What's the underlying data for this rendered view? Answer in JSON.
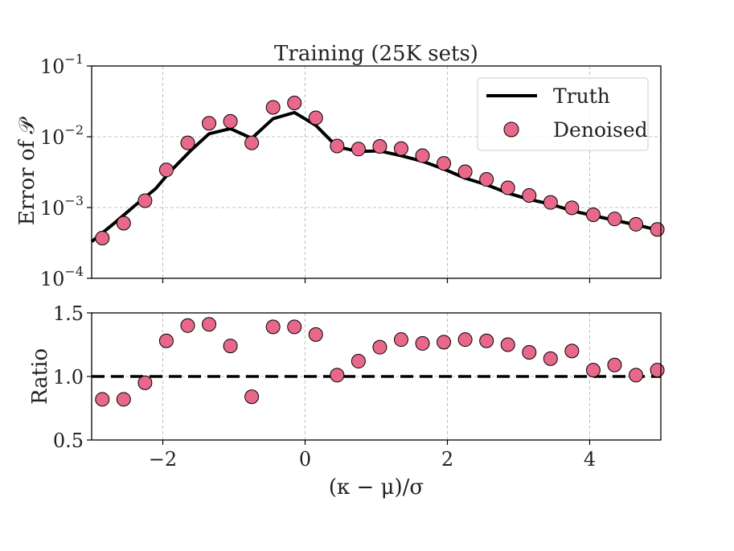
{
  "chart_data": [
    {
      "type": "line",
      "title": "Training (25K sets)",
      "xlabel": "",
      "ylabel": "Error of 𝒫",
      "yscale": "log",
      "ylim": [
        0.0001,
        0.1
      ],
      "xlim": [
        -3,
        5
      ],
      "y_tick_labels": [
        {
          "value": 0.1,
          "base": "10",
          "exp": "−1"
        },
        {
          "value": 0.01,
          "base": "10",
          "exp": "−2"
        },
        {
          "value": 0.001,
          "base": "10",
          "exp": "−3"
        },
        {
          "value": 0.0001,
          "base": "10",
          "exp": "−4"
        }
      ],
      "grid": true,
      "legend": {
        "position": "top-right",
        "entries": [
          {
            "label": "Truth",
            "marker": "line"
          },
          {
            "label": "Denoised",
            "marker": "circle"
          }
        ]
      },
      "series": [
        {
          "name": "Truth",
          "style": "line",
          "color": "#000000",
          "x": [
            -3.0,
            -2.7,
            -2.4,
            -2.1,
            -1.9,
            -1.6,
            -1.35,
            -1.05,
            -0.75,
            -0.45,
            -0.15,
            0.15,
            0.45,
            0.75,
            1.05,
            1.35,
            1.65,
            1.95,
            2.25,
            2.55,
            2.85,
            3.15,
            3.45,
            3.75,
            4.05,
            4.35,
            4.65,
            5.0
          ],
          "values": [
            0.00033,
            0.00058,
            0.00105,
            0.00185,
            0.0032,
            0.0065,
            0.011,
            0.013,
            0.0095,
            0.018,
            0.022,
            0.0145,
            0.0072,
            0.0062,
            0.0063,
            0.0054,
            0.0045,
            0.0035,
            0.0026,
            0.0021,
            0.0016,
            0.0013,
            0.00112,
            0.0009,
            0.00077,
            0.00066,
            0.00057,
            0.00047
          ]
        },
        {
          "name": "Denoised",
          "style": "scatter",
          "color": "#e8688a",
          "x": [
            -2.85,
            -2.55,
            -2.25,
            -1.95,
            -1.65,
            -1.35,
            -1.05,
            -0.75,
            -0.45,
            -0.15,
            0.15,
            0.45,
            0.75,
            1.05,
            1.35,
            1.65,
            1.95,
            2.25,
            2.55,
            2.85,
            3.15,
            3.45,
            3.75,
            4.05,
            4.35,
            4.65,
            4.95
          ],
          "values": [
            0.00037,
            0.0006,
            0.00125,
            0.0034,
            0.0082,
            0.0155,
            0.0165,
            0.0082,
            0.026,
            0.03,
            0.0185,
            0.0074,
            0.0067,
            0.0073,
            0.0068,
            0.0054,
            0.0042,
            0.0032,
            0.0025,
            0.0019,
            0.00148,
            0.00118,
            0.00099,
            0.00079,
            0.00069,
            0.00058,
            0.00049
          ]
        }
      ]
    },
    {
      "type": "scatter",
      "title": "",
      "xlabel": "(κ − μ)/σ",
      "ylabel": "Ratio",
      "xlim": [
        -3,
        5
      ],
      "ylim": [
        0.5,
        1.5
      ],
      "x_ticks": [
        -2,
        0,
        2,
        4
      ],
      "x_tick_labels": [
        "−2",
        "0",
        "2",
        "4"
      ],
      "y_ticks": [
        0.5,
        1.0,
        1.5
      ],
      "y_tick_labels": [
        "0.5",
        "1.0",
        "1.5"
      ],
      "grid": true,
      "reference_line": {
        "y": 1.0,
        "style": "dashed",
        "color": "#000000"
      },
      "series": [
        {
          "style": "scatter",
          "color": "#e8688a",
          "x": [
            -2.85,
            -2.55,
            -2.25,
            -1.95,
            -1.65,
            -1.35,
            -1.05,
            -0.75,
            -0.45,
            -0.15,
            0.15,
            0.45,
            0.75,
            1.05,
            1.35,
            1.65,
            1.95,
            2.25,
            2.55,
            2.85,
            3.15,
            3.45,
            3.75,
            4.05,
            4.35,
            4.65,
            4.95
          ],
          "values": [
            0.82,
            0.82,
            0.95,
            1.28,
            1.4,
            1.41,
            1.24,
            0.84,
            1.39,
            1.39,
            1.33,
            1.01,
            1.12,
            1.23,
            1.29,
            1.26,
            1.27,
            1.29,
            1.28,
            1.25,
            1.19,
            1.14,
            1.2,
            1.05,
            1.09,
            1.01,
            1.05
          ]
        }
      ]
    }
  ]
}
